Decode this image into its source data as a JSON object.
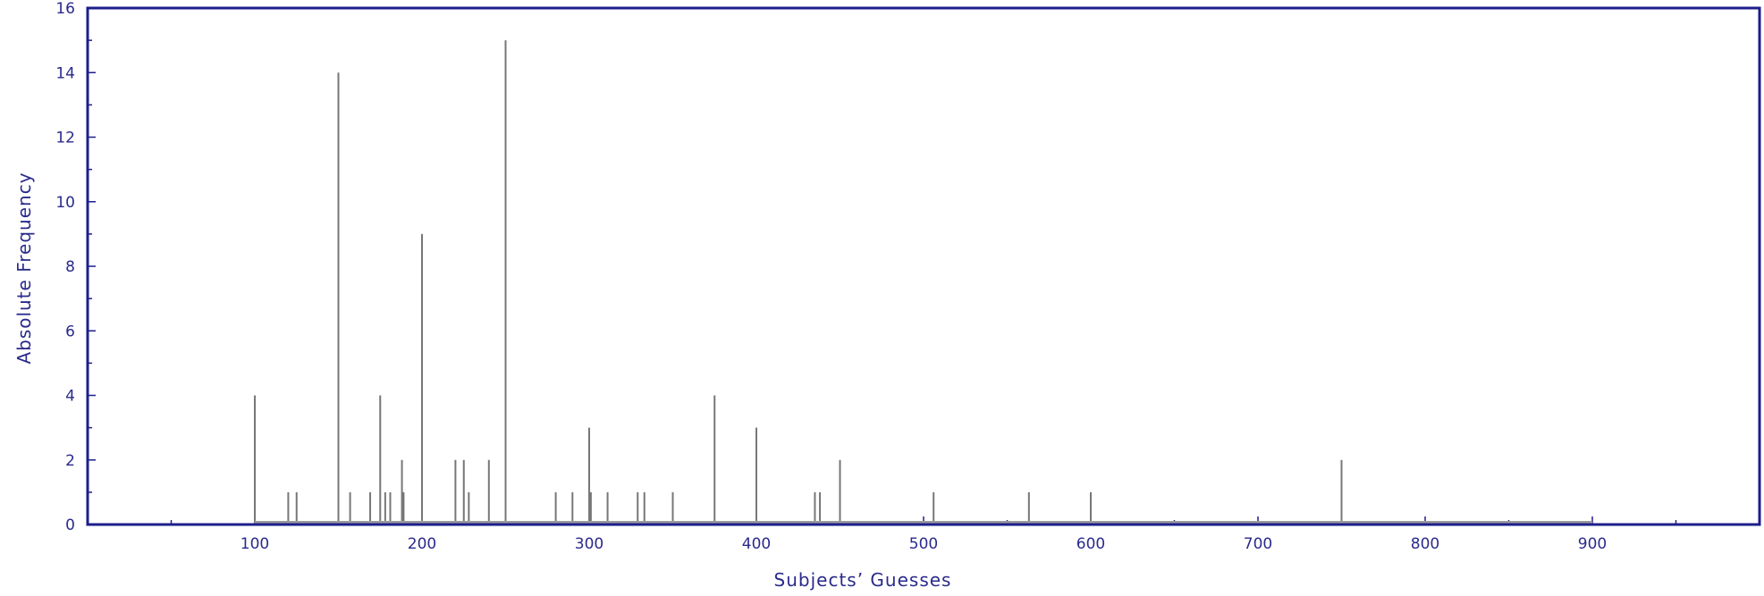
{
  "chart_data": {
    "type": "bar",
    "title": "",
    "xlabel": "Subjects’ Guesses",
    "ylabel": "Absolute Frequency",
    "xlim": [
      0,
      1000
    ],
    "ylim": [
      0,
      16
    ],
    "xticks": [
      100,
      200,
      300,
      400,
      500,
      600,
      700,
      800,
      900
    ],
    "yticks": [
      0,
      2,
      4,
      6,
      8,
      10,
      12,
      14,
      16
    ],
    "grid": false,
    "legend": "none",
    "baseline_range": [
      100,
      900
    ],
    "colors": {
      "frame": "#1e1e8c",
      "bars": "#777777",
      "text": "#2a2a8c"
    },
    "points": [
      {
        "x": 100,
        "y": 4
      },
      {
        "x": 120,
        "y": 1
      },
      {
        "x": 125,
        "y": 1
      },
      {
        "x": 150,
        "y": 14
      },
      {
        "x": 157,
        "y": 1
      },
      {
        "x": 169,
        "y": 1
      },
      {
        "x": 175,
        "y": 4
      },
      {
        "x": 178,
        "y": 1
      },
      {
        "x": 181,
        "y": 1
      },
      {
        "x": 188,
        "y": 2
      },
      {
        "x": 189,
        "y": 1
      },
      {
        "x": 200,
        "y": 9
      },
      {
        "x": 220,
        "y": 2
      },
      {
        "x": 225,
        "y": 2
      },
      {
        "x": 228,
        "y": 1
      },
      {
        "x": 240,
        "y": 2
      },
      {
        "x": 250,
        "y": 15
      },
      {
        "x": 280,
        "y": 1
      },
      {
        "x": 290,
        "y": 1
      },
      {
        "x": 300,
        "y": 3
      },
      {
        "x": 301,
        "y": 1
      },
      {
        "x": 311,
        "y": 1
      },
      {
        "x": 329,
        "y": 1
      },
      {
        "x": 333,
        "y": 1
      },
      {
        "x": 350,
        "y": 1
      },
      {
        "x": 375,
        "y": 4
      },
      {
        "x": 400,
        "y": 3
      },
      {
        "x": 435,
        "y": 1
      },
      {
        "x": 438,
        "y": 1
      },
      {
        "x": 450,
        "y": 2
      },
      {
        "x": 506,
        "y": 1
      },
      {
        "x": 563,
        "y": 1
      },
      {
        "x": 600,
        "y": 1
      },
      {
        "x": 750,
        "y": 2
      }
    ]
  }
}
